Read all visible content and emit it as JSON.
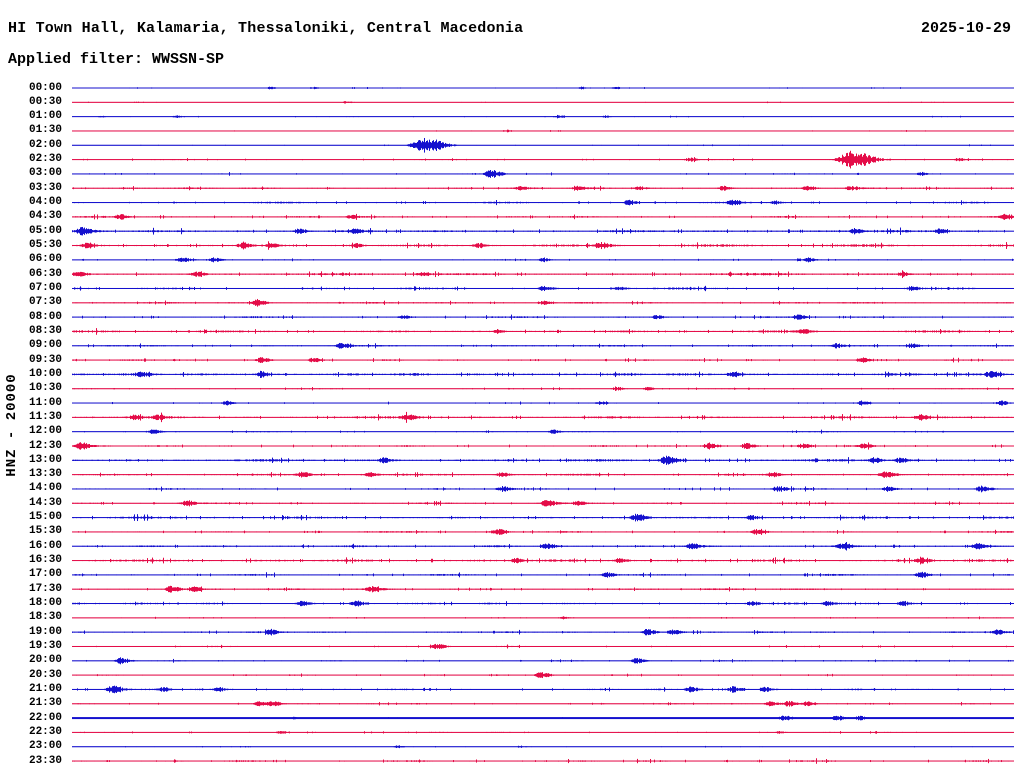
{
  "header": {
    "title": "HI Town Hall, Kalamaria, Thessaloniki, Central Macedonia",
    "date": "2025-10-29",
    "filter_line": "Applied filter: WWSSN-SP"
  },
  "axis": {
    "vertical_label": "HNZ - 20000"
  },
  "colors": {
    "trace_blue": "#1410CE",
    "trace_red": "#E40C48",
    "text": "#000000",
    "background": "#FFFFFF"
  },
  "chart_data": {
    "type": "line",
    "subtype": "helicorder-seismogram",
    "title": "HI Town Hall, Kalamaria, Thessaloniki, Central Macedonia",
    "date": "2025-10-29",
    "filter": "WWSSN-SP",
    "channel_scale_label": "HNZ - 20000",
    "minutes_per_row": 30,
    "legend_position": "none",
    "grid": false,
    "rows": [
      {
        "time": "00:00",
        "color": "blue",
        "noise": 0.35,
        "events": [
          [
            0.21,
            1.4
          ],
          [
            0.255,
            1.2
          ],
          [
            0.54,
            1.4
          ],
          [
            0.575,
            1.1
          ]
        ]
      },
      {
        "time": "00:30",
        "color": "red",
        "noise": 0.3,
        "events": [
          [
            0.29,
            1.2
          ]
        ]
      },
      {
        "time": "01:00",
        "color": "blue",
        "noise": 0.35,
        "events": [
          [
            0.03,
            1.0
          ],
          [
            0.11,
            1.4
          ],
          [
            0.515,
            1.6
          ],
          [
            0.565,
            1.2
          ]
        ]
      },
      {
        "time": "01:30",
        "color": "red",
        "noise": 0.3,
        "events": [
          [
            0.46,
            1.4
          ]
        ]
      },
      {
        "time": "02:00",
        "color": "blue",
        "noise": 0.32,
        "events": [
          [
            0.36,
            2.0
          ],
          [
            0.375,
            7.5
          ]
        ]
      },
      {
        "time": "02:30",
        "color": "red",
        "noise": 0.55,
        "events": [
          [
            0.655,
            2.0
          ],
          [
            0.826,
            9.0
          ],
          [
            0.94,
            1.6
          ]
        ]
      },
      {
        "time": "03:00",
        "color": "blue",
        "noise": 0.55,
        "events": [
          [
            0.444,
            4.0
          ],
          [
            0.9,
            1.8
          ]
        ]
      },
      {
        "time": "03:30",
        "color": "red",
        "noise": 0.85,
        "events": [
          [
            0.475,
            2.0
          ],
          [
            0.535,
            2.4
          ],
          [
            0.6,
            2.0
          ],
          [
            0.69,
            2.4
          ],
          [
            0.78,
            2.4
          ],
          [
            0.825,
            2.2
          ]
        ]
      },
      {
        "time": "04:00",
        "color": "blue",
        "noise": 0.85,
        "events": [
          [
            0.59,
            2.5
          ],
          [
            0.7,
            2.7
          ],
          [
            0.745,
            2.0
          ]
        ]
      },
      {
        "time": "04:30",
        "color": "red",
        "noise": 0.85,
        "events": [
          [
            0.05,
            2.8
          ],
          [
            0.295,
            2.0
          ],
          [
            0.99,
            2.8
          ]
        ]
      },
      {
        "time": "05:00",
        "color": "blue",
        "noise": 1.2,
        "events": [
          [
            0.01,
            3.8
          ],
          [
            0.24,
            2.4
          ],
          [
            0.3,
            2.4
          ],
          [
            0.83,
            2.8
          ],
          [
            0.92,
            2.4
          ]
        ]
      },
      {
        "time": "05:30",
        "color": "red",
        "noise": 1.2,
        "events": [
          [
            0.015,
            2.8
          ],
          [
            0.18,
            2.8
          ],
          [
            0.21,
            2.4
          ],
          [
            0.3,
            2.0
          ],
          [
            0.43,
            2.4
          ],
          [
            0.56,
            3.4
          ]
        ]
      },
      {
        "time": "06:00",
        "color": "blue",
        "noise": 0.55,
        "events": [
          [
            0.115,
            2.8
          ],
          [
            0.15,
            2.4
          ],
          [
            0.5,
            2.0
          ],
          [
            0.78,
            2.0
          ]
        ]
      },
      {
        "time": "06:30",
        "color": "red",
        "noise": 1.2,
        "events": [
          [
            0.005,
            2.8
          ],
          [
            0.13,
            2.8
          ],
          [
            0.37,
            2.0
          ],
          [
            0.88,
            2.2
          ]
        ]
      },
      {
        "time": "07:00",
        "color": "blue",
        "noise": 0.95,
        "events": [
          [
            0.5,
            2.8
          ],
          [
            0.58,
            2.2
          ],
          [
            0.89,
            2.2
          ]
        ]
      },
      {
        "time": "07:30",
        "color": "red",
        "noise": 0.85,
        "events": [
          [
            0.195,
            3.0
          ],
          [
            0.5,
            2.0
          ]
        ]
      },
      {
        "time": "08:00",
        "color": "blue",
        "noise": 0.9,
        "events": [
          [
            0.35,
            2.0
          ],
          [
            0.62,
            2.0
          ],
          [
            0.77,
            2.2
          ]
        ]
      },
      {
        "time": "08:30",
        "color": "red",
        "noise": 1.1,
        "events": [
          [
            0.45,
            2.0
          ],
          [
            0.775,
            2.4
          ]
        ]
      },
      {
        "time": "09:00",
        "color": "blue",
        "noise": 0.85,
        "events": [
          [
            0.285,
            2.8
          ],
          [
            0.81,
            2.2
          ],
          [
            0.89,
            2.4
          ]
        ]
      },
      {
        "time": "09:30",
        "color": "red",
        "noise": 0.8,
        "events": [
          [
            0.2,
            2.8
          ],
          [
            0.255,
            2.2
          ],
          [
            0.838,
            2.4
          ]
        ]
      },
      {
        "time": "10:00",
        "color": "blue",
        "noise": 1.3,
        "events": [
          [
            0.072,
            2.4
          ],
          [
            0.2,
            2.4
          ],
          [
            0.7,
            2.4
          ],
          [
            0.975,
            3.2
          ]
        ]
      },
      {
        "time": "10:30",
        "color": "red",
        "noise": 0.55,
        "events": [
          [
            0.577,
            2.0
          ],
          [
            0.61,
            1.8
          ]
        ]
      },
      {
        "time": "11:00",
        "color": "blue",
        "noise": 0.55,
        "events": [
          [
            0.163,
            2.4
          ],
          [
            0.56,
            2.0
          ],
          [
            0.838,
            2.4
          ],
          [
            0.985,
            2.4
          ]
        ]
      },
      {
        "time": "11:30",
        "color": "red",
        "noise": 1.15,
        "events": [
          [
            0.065,
            2.4
          ],
          [
            0.09,
            2.4
          ],
          [
            0.355,
            3.2
          ],
          [
            0.9,
            2.8
          ]
        ]
      },
      {
        "time": "12:00",
        "color": "blue",
        "noise": 0.6,
        "events": [
          [
            0.085,
            2.4
          ],
          [
            0.51,
            2.0
          ]
        ]
      },
      {
        "time": "12:30",
        "color": "red",
        "noise": 0.9,
        "events": [
          [
            0.008,
            3.8
          ],
          [
            0.675,
            3.2
          ],
          [
            0.715,
            2.8
          ],
          [
            0.775,
            2.4
          ],
          [
            0.84,
            2.4
          ]
        ]
      },
      {
        "time": "13:00",
        "color": "blue",
        "noise": 1.2,
        "events": [
          [
            0.33,
            2.4
          ],
          [
            0.63,
            4.2
          ],
          [
            0.85,
            2.8
          ],
          [
            0.878,
            2.6
          ]
        ]
      },
      {
        "time": "13:30",
        "color": "red",
        "noise": 0.95,
        "events": [
          [
            0.243,
            2.8
          ],
          [
            0.315,
            2.4
          ],
          [
            0.455,
            2.4
          ],
          [
            0.742,
            2.8
          ],
          [
            0.862,
            3.2
          ]
        ]
      },
      {
        "time": "14:00",
        "color": "blue",
        "noise": 0.85,
        "events": [
          [
            0.455,
            2.8
          ],
          [
            0.748,
            2.8
          ],
          [
            0.865,
            2.4
          ],
          [
            0.965,
            3.2
          ]
        ]
      },
      {
        "time": "14:30",
        "color": "red",
        "noise": 0.85,
        "events": [
          [
            0.12,
            2.8
          ],
          [
            0.503,
            3.2
          ],
          [
            0.535,
            2.4
          ]
        ]
      },
      {
        "time": "15:00",
        "color": "blue",
        "noise": 1.1,
        "events": [
          [
            0.598,
            3.8
          ],
          [
            0.72,
            2.4
          ]
        ]
      },
      {
        "time": "15:30",
        "color": "red",
        "noise": 0.85,
        "events": [
          [
            0.45,
            3.4
          ],
          [
            0.726,
            2.8
          ]
        ]
      },
      {
        "time": "16:00",
        "color": "blue",
        "noise": 0.95,
        "events": [
          [
            0.503,
            2.8
          ],
          [
            0.657,
            2.8
          ],
          [
            0.817,
            2.8
          ],
          [
            0.96,
            2.8
          ]
        ]
      },
      {
        "time": "16:30",
        "color": "red",
        "noise": 1.2,
        "events": [
          [
            0.47,
            2.4
          ],
          [
            0.58,
            2.4
          ],
          [
            0.9,
            3.2
          ]
        ]
      },
      {
        "time": "17:00",
        "color": "blue",
        "noise": 0.9,
        "events": [
          [
            0.567,
            2.8
          ],
          [
            0.9,
            2.8
          ]
        ]
      },
      {
        "time": "17:30",
        "color": "red",
        "noise": 0.85,
        "events": [
          [
            0.104,
            3.2
          ],
          [
            0.128,
            2.8
          ],
          [
            0.317,
            2.8
          ]
        ]
      },
      {
        "time": "18:00",
        "color": "blue",
        "noise": 0.95,
        "events": [
          [
            0.243,
            2.8
          ],
          [
            0.3,
            2.8
          ],
          [
            0.72,
            2.4
          ],
          [
            0.8,
            2.4
          ],
          [
            0.88,
            2.4
          ]
        ]
      },
      {
        "time": "18:30",
        "color": "red",
        "noise": 0.5,
        "events": [
          [
            0.52,
            1.5
          ]
        ]
      },
      {
        "time": "19:00",
        "color": "blue",
        "noise": 0.85,
        "events": [
          [
            0.21,
            2.8
          ],
          [
            0.61,
            3.0
          ],
          [
            0.637,
            2.6
          ],
          [
            0.98,
            2.8
          ]
        ]
      },
      {
        "time": "19:30",
        "color": "red",
        "noise": 0.6,
        "events": [
          [
            0.386,
            3.2
          ]
        ]
      },
      {
        "time": "20:00",
        "color": "blue",
        "noise": 0.6,
        "events": [
          [
            0.051,
            3.2
          ],
          [
            0.598,
            2.8
          ]
        ]
      },
      {
        "time": "20:30",
        "color": "red",
        "noise": 0.55,
        "events": [
          [
            0.497,
            3.2
          ]
        ]
      },
      {
        "time": "21:00",
        "color": "blue",
        "noise": 0.8,
        "events": [
          [
            0.042,
            3.8
          ],
          [
            0.095,
            2.4
          ],
          [
            0.155,
            2.2
          ],
          [
            0.655,
            2.8
          ],
          [
            0.7,
            3.2
          ],
          [
            0.735,
            2.6
          ]
        ]
      },
      {
        "time": "21:30",
        "color": "red",
        "noise": 0.55,
        "events": [
          [
            0.197,
            2.6
          ],
          [
            0.212,
            2.8
          ],
          [
            0.74,
            2.6
          ],
          [
            0.76,
            3.0
          ],
          [
            0.78,
            2.4
          ]
        ]
      },
      {
        "time": "22:00",
        "color": "blue",
        "noise": 0.3,
        "thick": 2,
        "events": [
          [
            0.235,
            1.2
          ],
          [
            0.755,
            2.8
          ],
          [
            0.81,
            3.2
          ],
          [
            0.835,
            2.4
          ]
        ]
      },
      {
        "time": "22:30",
        "color": "red",
        "noise": 0.55,
        "events": [
          [
            0.22,
            1.4
          ],
          [
            0.75,
            1.4
          ]
        ]
      },
      {
        "time": "23:00",
        "color": "blue",
        "noise": 0.3,
        "events": [
          [
            0.345,
            1.5
          ],
          [
            0.475,
            1.2
          ]
        ]
      },
      {
        "time": "23:30",
        "color": "red",
        "noise": 0.85,
        "events": []
      }
    ]
  }
}
